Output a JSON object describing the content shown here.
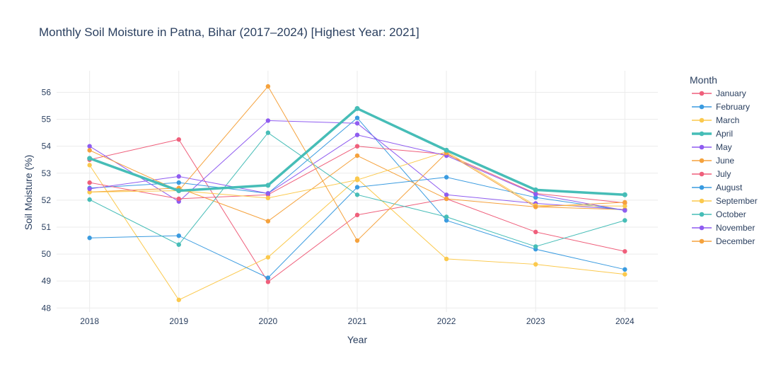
{
  "chart_data": {
    "type": "line",
    "title": "Monthly Soil Moisture in Patna, Bihar (2017–2024) [Highest Year: 2021]",
    "xlabel": "Year",
    "ylabel": "Soil Moisture (%)",
    "x": [
      2018,
      2019,
      2020,
      2021,
      2022,
      2023,
      2024
    ],
    "xticks": [
      "2018",
      "2019",
      "2020",
      "2021",
      "2022",
      "2023",
      "2024"
    ],
    "yticks": [
      "48",
      "49",
      "50",
      "51",
      "52",
      "53",
      "54",
      "55",
      "56"
    ],
    "ylim": [
      47.85,
      56.8
    ],
    "grid": true,
    "legend_title": "Month",
    "legend_position": "right",
    "highlight_series": "April",
    "series": [
      {
        "name": "January",
        "color": "#ef5f7b",
        "values": [
          53.5,
          54.25,
          48.97,
          51.45,
          52.05,
          50.82,
          50.1
        ]
      },
      {
        "name": "February",
        "color": "#3a9be0",
        "values": [
          52.45,
          52.65,
          52.25,
          55.05,
          51.25,
          50.18,
          49.43
        ]
      },
      {
        "name": "March",
        "color": "#fbc94d",
        "values": [
          53.3,
          48.3,
          49.88,
          52.8,
          49.82,
          49.62,
          49.25
        ]
      },
      {
        "name": "April",
        "color": "#46bdb7",
        "values": [
          53.55,
          52.35,
          52.55,
          55.4,
          53.85,
          52.38,
          52.2
        ]
      },
      {
        "name": "May",
        "color": "#8f5cf0",
        "values": [
          54.0,
          51.95,
          54.95,
          54.85,
          52.2,
          51.88,
          51.65
        ]
      },
      {
        "name": "June",
        "color": "#f5a23d",
        "values": [
          52.3,
          52.45,
          51.22,
          53.65,
          52.05,
          51.75,
          51.65
        ]
      },
      {
        "name": "July",
        "color": "#ef5f7b",
        "values": [
          52.65,
          52.05,
          52.2,
          54.0,
          53.7,
          52.25,
          51.9
        ]
      },
      {
        "name": "August",
        "color": "#3a9be0",
        "values": [
          50.6,
          50.68,
          49.12,
          52.48,
          52.85,
          52.1,
          51.62
        ]
      },
      {
        "name": "September",
        "color": "#fbc94d",
        "values": [
          52.3,
          52.35,
          52.08,
          52.75,
          53.8,
          51.8,
          51.78
        ]
      },
      {
        "name": "October",
        "color": "#46bdb7",
        "values": [
          52.02,
          50.35,
          54.5,
          52.2,
          51.38,
          50.28,
          51.25
        ]
      },
      {
        "name": "November",
        "color": "#8f5cf0",
        "values": [
          52.42,
          52.88,
          52.25,
          54.42,
          53.65,
          52.22,
          51.62
        ]
      },
      {
        "name": "December",
        "color": "#f5a23d",
        "values": [
          53.85,
          52.35,
          56.22,
          50.5,
          53.75,
          51.75,
          51.92
        ]
      }
    ]
  }
}
